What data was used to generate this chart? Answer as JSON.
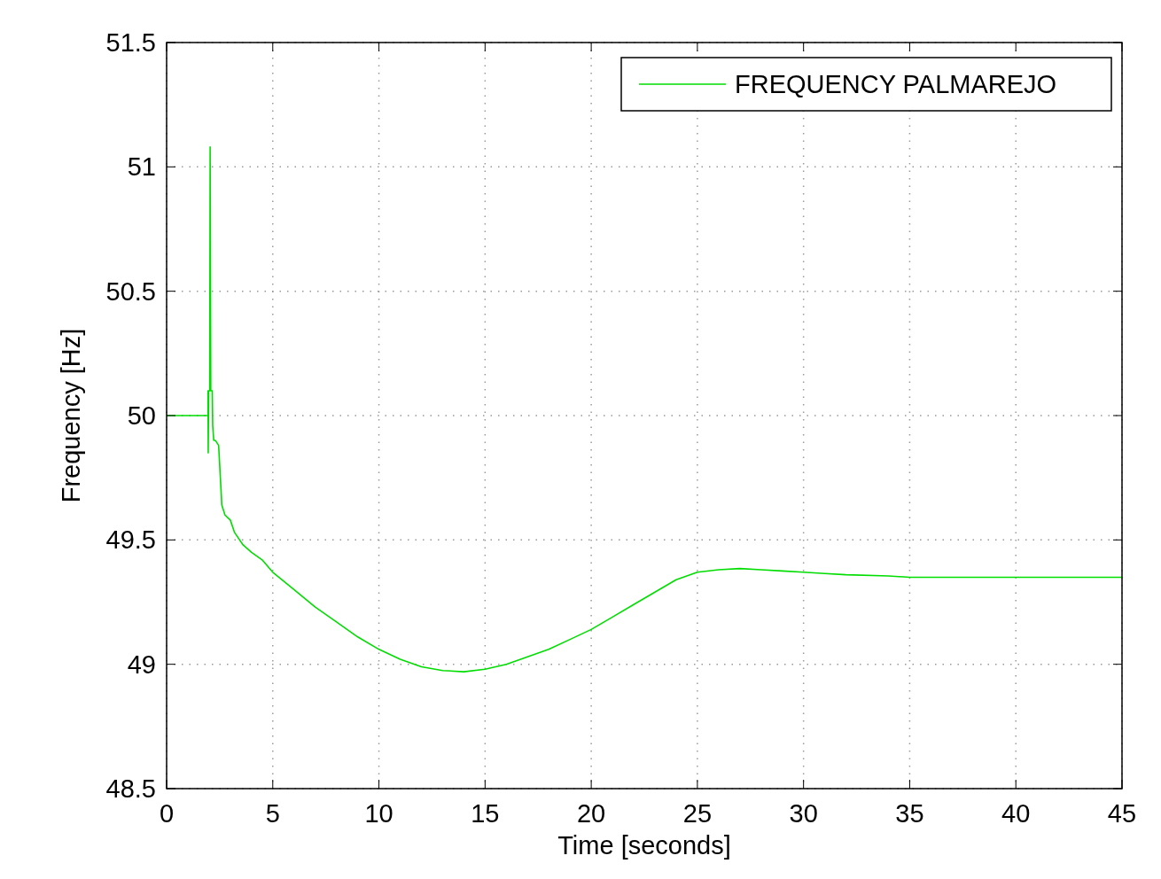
{
  "chart_data": {
    "type": "line",
    "xlabel": "Time [seconds]",
    "ylabel": "Frequency [Hz]",
    "xlim": [
      0,
      45
    ],
    "xticks": [
      0,
      5,
      10,
      15,
      20,
      25,
      30,
      35,
      40,
      45
    ],
    "ylim": [
      48.5,
      51.5
    ],
    "yticks": [
      48.5,
      49,
      49.5,
      50,
      50.5,
      51,
      51.5
    ],
    "grid": true,
    "legend": "top right",
    "series": [
      {
        "name": "FREQUENCY PALMAREJO",
        "color": "#00dd00",
        "x": [
          0,
          1.95,
          1.95,
          1.96,
          1.98,
          2.03,
          2.05,
          2.08,
          2.15,
          2.17,
          2.22,
          2.3,
          2.45,
          2.5,
          2.6,
          2.75,
          3.0,
          3.2,
          3.6,
          4.0,
          4.5,
          5,
          6,
          7,
          8,
          9,
          10,
          11,
          12,
          13,
          14,
          15,
          16,
          17,
          18,
          19,
          20,
          21,
          22,
          23,
          24,
          25,
          26,
          27,
          28,
          29,
          30,
          31,
          32,
          34,
          35,
          45
        ],
        "values": [
          50,
          50,
          50.1,
          49.85,
          50.1,
          50.1,
          51.08,
          50.1,
          50.1,
          49.96,
          49.9,
          49.9,
          49.88,
          49.8,
          49.64,
          49.6,
          49.58,
          49.53,
          49.48,
          49.45,
          49.42,
          49.37,
          49.3,
          49.23,
          49.17,
          49.11,
          49.06,
          49.02,
          48.99,
          48.975,
          48.97,
          48.98,
          49.0,
          49.03,
          49.06,
          49.1,
          49.14,
          49.19,
          49.24,
          49.29,
          49.34,
          49.37,
          49.38,
          49.385,
          49.38,
          49.375,
          49.37,
          49.365,
          49.36,
          49.355,
          49.35,
          49.35
        ]
      }
    ]
  }
}
